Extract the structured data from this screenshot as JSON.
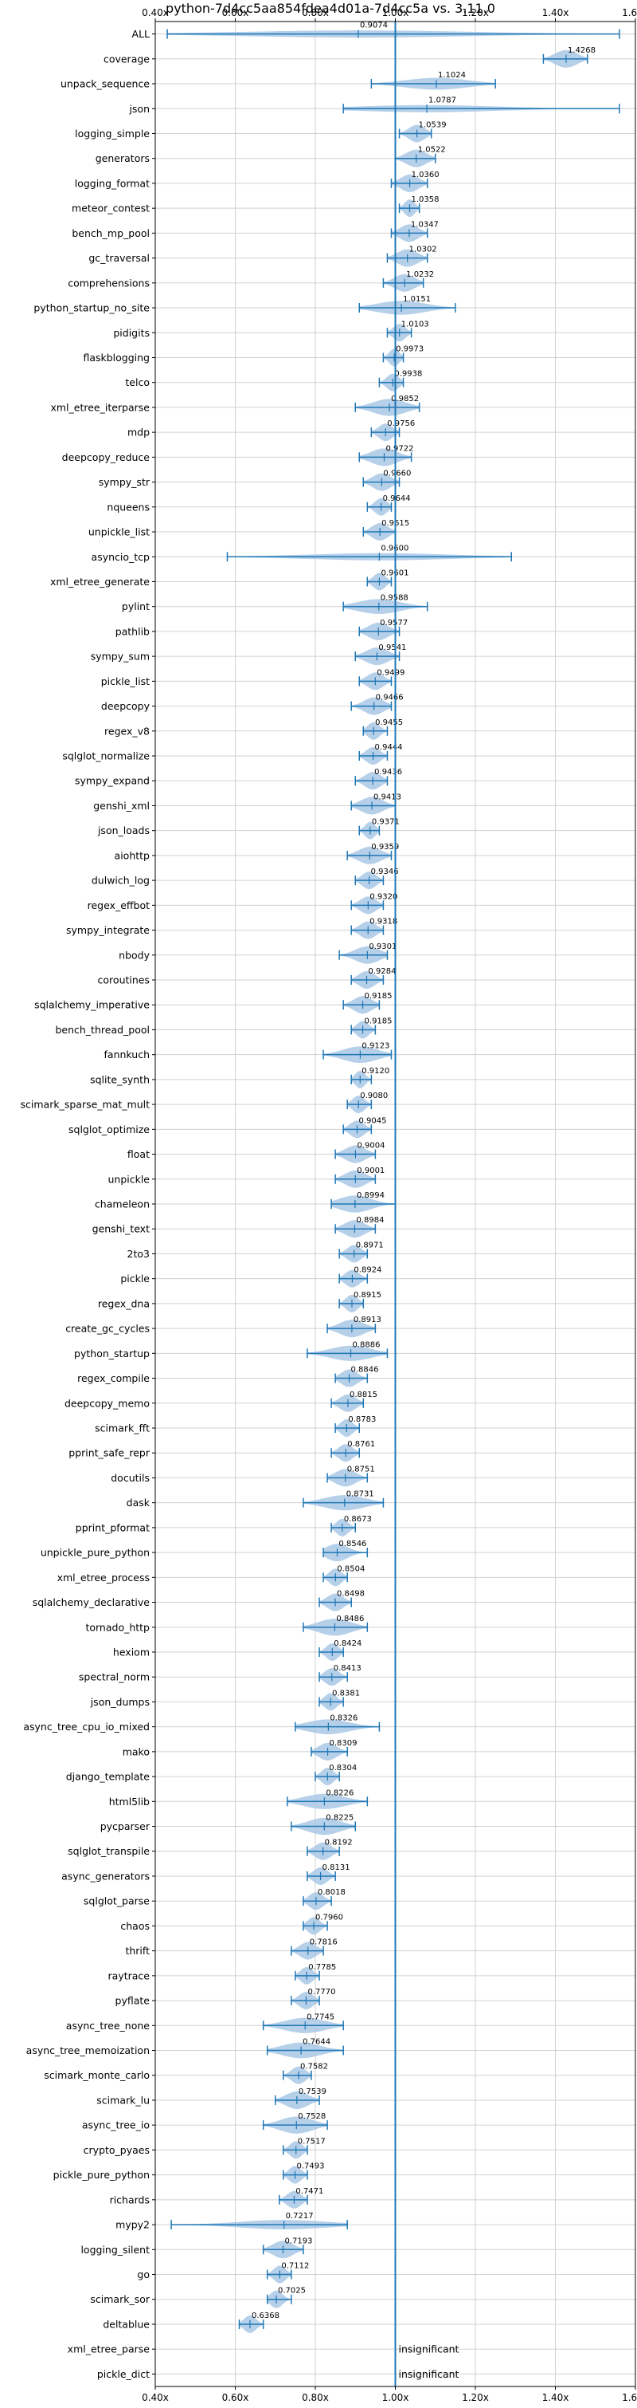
{
  "chart_data": {
    "type": "violin",
    "title": "python-7d4cc5aa854fdea4d01a-7d4cc5a vs. 3.11.0",
    "xlabel": "",
    "ylabel": "",
    "xlim": [
      0.4,
      1.6
    ],
    "xticks": [
      0.4,
      0.6,
      0.8,
      1.0,
      1.2,
      1.4,
      1.6
    ],
    "xtick_labels": [
      "0.40x",
      "0.60x",
      "0.80x",
      "1.00x",
      "1.20x",
      "1.40x",
      "1.60x"
    ],
    "reference_line": 1.0,
    "grid": true,
    "colors": {
      "violin": "#a9c8e6",
      "whisker": "#1f77b4",
      "reference": "#1f77b4",
      "grid": "#d0d0d0"
    },
    "categories": [
      {
        "name": "ALL",
        "value": 0.9074,
        "label": "0.9074",
        "min": 0.43,
        "max": 1.56
      },
      {
        "name": "coverage",
        "value": 1.4268,
        "label": "1.4268",
        "min": 1.37,
        "max": 1.48
      },
      {
        "name": "unpack_sequence",
        "value": 1.1024,
        "label": "1.1024",
        "min": 0.94,
        "max": 1.25
      },
      {
        "name": "json",
        "value": 1.0787,
        "label": "1.0787",
        "min": 0.87,
        "max": 1.56
      },
      {
        "name": "logging_simple",
        "value": 1.0539,
        "label": "1.0539",
        "min": 1.01,
        "max": 1.09
      },
      {
        "name": "generators",
        "value": 1.0522,
        "label": "1.0522",
        "min": 1.0,
        "max": 1.1
      },
      {
        "name": "logging_format",
        "value": 1.036,
        "label": "1.0360",
        "min": 0.99,
        "max": 1.08
      },
      {
        "name": "meteor_contest",
        "value": 1.0358,
        "label": "1.0358",
        "min": 1.01,
        "max": 1.06
      },
      {
        "name": "bench_mp_pool",
        "value": 1.0347,
        "label": "1.0347",
        "min": 0.99,
        "max": 1.08
      },
      {
        "name": "gc_traversal",
        "value": 1.0302,
        "label": "1.0302",
        "min": 0.98,
        "max": 1.08
      },
      {
        "name": "comprehensions",
        "value": 1.0232,
        "label": "1.0232",
        "min": 0.97,
        "max": 1.07
      },
      {
        "name": "python_startup_no_site",
        "value": 1.0151,
        "label": "1.0151",
        "min": 0.91,
        "max": 1.15
      },
      {
        "name": "pidigits",
        "value": 1.0103,
        "label": "1.0103",
        "min": 0.98,
        "max": 1.04
      },
      {
        "name": "flaskblogging",
        "value": 0.9973,
        "label": "0.9973",
        "min": 0.97,
        "max": 1.02
      },
      {
        "name": "telco",
        "value": 0.9938,
        "label": "0.9938",
        "min": 0.96,
        "max": 1.02
      },
      {
        "name": "xml_etree_iterparse",
        "value": 0.9852,
        "label": "0.9852",
        "min": 0.9,
        "max": 1.06
      },
      {
        "name": "mdp",
        "value": 0.9756,
        "label": "0.9756",
        "min": 0.94,
        "max": 1.01
      },
      {
        "name": "deepcopy_reduce",
        "value": 0.9722,
        "label": "0.9722",
        "min": 0.91,
        "max": 1.04
      },
      {
        "name": "sympy_str",
        "value": 0.966,
        "label": "0.9660",
        "min": 0.92,
        "max": 1.01
      },
      {
        "name": "nqueens",
        "value": 0.9644,
        "label": "0.9644",
        "min": 0.93,
        "max": 0.99
      },
      {
        "name": "unpickle_list",
        "value": 0.9615,
        "label": "0.9615",
        "min": 0.92,
        "max": 1.0
      },
      {
        "name": "asyncio_tcp",
        "value": 0.96,
        "label": "0.9600",
        "min": 0.58,
        "max": 1.29
      },
      {
        "name": "xml_etree_generate",
        "value": 0.9601,
        "label": "0.9601",
        "min": 0.93,
        "max": 0.99
      },
      {
        "name": "pylint",
        "value": 0.9588,
        "label": "0.9588",
        "min": 0.87,
        "max": 1.08
      },
      {
        "name": "pathlib",
        "value": 0.9577,
        "label": "0.9577",
        "min": 0.91,
        "max": 1.01
      },
      {
        "name": "sympy_sum",
        "value": 0.9541,
        "label": "0.9541",
        "min": 0.9,
        "max": 1.01
      },
      {
        "name": "pickle_list",
        "value": 0.9499,
        "label": "0.9499",
        "min": 0.91,
        "max": 0.99
      },
      {
        "name": "deepcopy",
        "value": 0.9466,
        "label": "0.9466",
        "min": 0.89,
        "max": 0.99
      },
      {
        "name": "regex_v8",
        "value": 0.9455,
        "label": "0.9455",
        "min": 0.92,
        "max": 0.98
      },
      {
        "name": "sqlglot_normalize",
        "value": 0.9444,
        "label": "0.9444",
        "min": 0.91,
        "max": 0.98
      },
      {
        "name": "sympy_expand",
        "value": 0.9436,
        "label": "0.9436",
        "min": 0.9,
        "max": 0.98
      },
      {
        "name": "genshi_xml",
        "value": 0.9413,
        "label": "0.9413",
        "min": 0.89,
        "max": 1.0
      },
      {
        "name": "json_loads",
        "value": 0.9371,
        "label": "0.9371",
        "min": 0.91,
        "max": 0.96
      },
      {
        "name": "aiohttp",
        "value": 0.9359,
        "label": "0.9359",
        "min": 0.88,
        "max": 0.99
      },
      {
        "name": "dulwich_log",
        "value": 0.9346,
        "label": "0.9346",
        "min": 0.9,
        "max": 0.97
      },
      {
        "name": "regex_effbot",
        "value": 0.932,
        "label": "0.9320",
        "min": 0.89,
        "max": 0.97
      },
      {
        "name": "sympy_integrate",
        "value": 0.9318,
        "label": "0.9318",
        "min": 0.89,
        "max": 0.97
      },
      {
        "name": "nbody",
        "value": 0.9301,
        "label": "0.9301",
        "min": 0.86,
        "max": 0.98
      },
      {
        "name": "coroutines",
        "value": 0.9284,
        "label": "0.9284",
        "min": 0.89,
        "max": 0.97
      },
      {
        "name": "sqlalchemy_imperative",
        "value": 0.9185,
        "label": "0.9185",
        "min": 0.87,
        "max": 0.96
      },
      {
        "name": "bench_thread_pool",
        "value": 0.9185,
        "label": "0.9185",
        "min": 0.89,
        "max": 0.95
      },
      {
        "name": "fannkuch",
        "value": 0.9123,
        "label": "0.9123",
        "min": 0.82,
        "max": 0.99
      },
      {
        "name": "sqlite_synth",
        "value": 0.912,
        "label": "0.9120",
        "min": 0.89,
        "max": 0.94
      },
      {
        "name": "scimark_sparse_mat_mult",
        "value": 0.908,
        "label": "0.9080",
        "min": 0.88,
        "max": 0.94
      },
      {
        "name": "sqlglot_optimize",
        "value": 0.9045,
        "label": "0.9045",
        "min": 0.87,
        "max": 0.94
      },
      {
        "name": "float",
        "value": 0.9004,
        "label": "0.9004",
        "min": 0.85,
        "max": 0.95
      },
      {
        "name": "unpickle",
        "value": 0.9001,
        "label": "0.9001",
        "min": 0.85,
        "max": 0.95
      },
      {
        "name": "chameleon",
        "value": 0.8994,
        "label": "0.8994",
        "min": 0.84,
        "max": 1.0
      },
      {
        "name": "genshi_text",
        "value": 0.8984,
        "label": "0.8984",
        "min": 0.85,
        "max": 0.95
      },
      {
        "name": "2to3",
        "value": 0.8971,
        "label": "0.8971",
        "min": 0.86,
        "max": 0.93
      },
      {
        "name": "pickle",
        "value": 0.8924,
        "label": "0.8924",
        "min": 0.86,
        "max": 0.93
      },
      {
        "name": "regex_dna",
        "value": 0.8915,
        "label": "0.8915",
        "min": 0.86,
        "max": 0.92
      },
      {
        "name": "create_gc_cycles",
        "value": 0.8913,
        "label": "0.8913",
        "min": 0.83,
        "max": 0.95
      },
      {
        "name": "python_startup",
        "value": 0.8886,
        "label": "0.8886",
        "min": 0.78,
        "max": 0.98
      },
      {
        "name": "regex_compile",
        "value": 0.8846,
        "label": "0.8846",
        "min": 0.85,
        "max": 0.93
      },
      {
        "name": "deepcopy_memo",
        "value": 0.8815,
        "label": "0.8815",
        "min": 0.84,
        "max": 0.92
      },
      {
        "name": "scimark_fft",
        "value": 0.8783,
        "label": "0.8783",
        "min": 0.85,
        "max": 0.91
      },
      {
        "name": "pprint_safe_repr",
        "value": 0.8761,
        "label": "0.8761",
        "min": 0.84,
        "max": 0.91
      },
      {
        "name": "docutils",
        "value": 0.8751,
        "label": "0.8751",
        "min": 0.83,
        "max": 0.93
      },
      {
        "name": "dask",
        "value": 0.8731,
        "label": "0.8731",
        "min": 0.77,
        "max": 0.97
      },
      {
        "name": "pprint_pformat",
        "value": 0.8673,
        "label": "0.8673",
        "min": 0.84,
        "max": 0.9
      },
      {
        "name": "unpickle_pure_python",
        "value": 0.8546,
        "label": "0.8546",
        "min": 0.82,
        "max": 0.93
      },
      {
        "name": "xml_etree_process",
        "value": 0.8504,
        "label": "0.8504",
        "min": 0.82,
        "max": 0.88
      },
      {
        "name": "sqlalchemy_declarative",
        "value": 0.8498,
        "label": "0.8498",
        "min": 0.81,
        "max": 0.89
      },
      {
        "name": "tornado_http",
        "value": 0.8486,
        "label": "0.8486",
        "min": 0.77,
        "max": 0.93
      },
      {
        "name": "hexiom",
        "value": 0.8424,
        "label": "0.8424",
        "min": 0.81,
        "max": 0.87
      },
      {
        "name": "spectral_norm",
        "value": 0.8413,
        "label": "0.8413",
        "min": 0.81,
        "max": 0.88
      },
      {
        "name": "json_dumps",
        "value": 0.8381,
        "label": "0.8381",
        "min": 0.81,
        "max": 0.87
      },
      {
        "name": "async_tree_cpu_io_mixed",
        "value": 0.8326,
        "label": "0.8326",
        "min": 0.75,
        "max": 0.96
      },
      {
        "name": "mako",
        "value": 0.8309,
        "label": "0.8309",
        "min": 0.79,
        "max": 0.88
      },
      {
        "name": "django_template",
        "value": 0.8304,
        "label": "0.8304",
        "min": 0.8,
        "max": 0.86
      },
      {
        "name": "html5lib",
        "value": 0.8226,
        "label": "0.8226",
        "min": 0.73,
        "max": 0.93
      },
      {
        "name": "pycparser",
        "value": 0.8225,
        "label": "0.8225",
        "min": 0.74,
        "max": 0.9
      },
      {
        "name": "sqlglot_transpile",
        "value": 0.8192,
        "label": "0.8192",
        "min": 0.78,
        "max": 0.86
      },
      {
        "name": "async_generators",
        "value": 0.8131,
        "label": "0.8131",
        "min": 0.78,
        "max": 0.85
      },
      {
        "name": "sqlglot_parse",
        "value": 0.8018,
        "label": "0.8018",
        "min": 0.77,
        "max": 0.84
      },
      {
        "name": "chaos",
        "value": 0.796,
        "label": "0.7960",
        "min": 0.77,
        "max": 0.83
      },
      {
        "name": "thrift",
        "value": 0.7816,
        "label": "0.7816",
        "min": 0.74,
        "max": 0.82
      },
      {
        "name": "raytrace",
        "value": 0.7785,
        "label": "0.7785",
        "min": 0.75,
        "max": 0.81
      },
      {
        "name": "pyflate",
        "value": 0.777,
        "label": "0.7770",
        "min": 0.74,
        "max": 0.81
      },
      {
        "name": "async_tree_none",
        "value": 0.7745,
        "label": "0.7745",
        "min": 0.67,
        "max": 0.87
      },
      {
        "name": "async_tree_memoization",
        "value": 0.7644,
        "label": "0.7644",
        "min": 0.68,
        "max": 0.87
      },
      {
        "name": "scimark_monte_carlo",
        "value": 0.7582,
        "label": "0.7582",
        "min": 0.72,
        "max": 0.79
      },
      {
        "name": "scimark_lu",
        "value": 0.7539,
        "label": "0.7539",
        "min": 0.7,
        "max": 0.81
      },
      {
        "name": "async_tree_io",
        "value": 0.7528,
        "label": "0.7528",
        "min": 0.67,
        "max": 0.83
      },
      {
        "name": "crypto_pyaes",
        "value": 0.7517,
        "label": "0.7517",
        "min": 0.72,
        "max": 0.78
      },
      {
        "name": "pickle_pure_python",
        "value": 0.7493,
        "label": "0.7493",
        "min": 0.72,
        "max": 0.78
      },
      {
        "name": "richards",
        "value": 0.7471,
        "label": "0.7471",
        "min": 0.71,
        "max": 0.78
      },
      {
        "name": "mypy2",
        "value": 0.7217,
        "label": "0.7217",
        "min": 0.44,
        "max": 0.88
      },
      {
        "name": "logging_silent",
        "value": 0.7193,
        "label": "0.7193",
        "min": 0.67,
        "max": 0.77
      },
      {
        "name": "go",
        "value": 0.7112,
        "label": "0.7112",
        "min": 0.68,
        "max": 0.74
      },
      {
        "name": "scimark_sor",
        "value": 0.7025,
        "label": "0.7025",
        "min": 0.68,
        "max": 0.74
      },
      {
        "name": "deltablue",
        "value": 0.6368,
        "label": "0.6368",
        "min": 0.61,
        "max": 0.67
      },
      {
        "name": "xml_etree_parse",
        "value": null,
        "label": "insignificant",
        "min": null,
        "max": null
      },
      {
        "name": "pickle_dict",
        "value": null,
        "label": "insignificant",
        "min": null,
        "max": null
      }
    ]
  }
}
